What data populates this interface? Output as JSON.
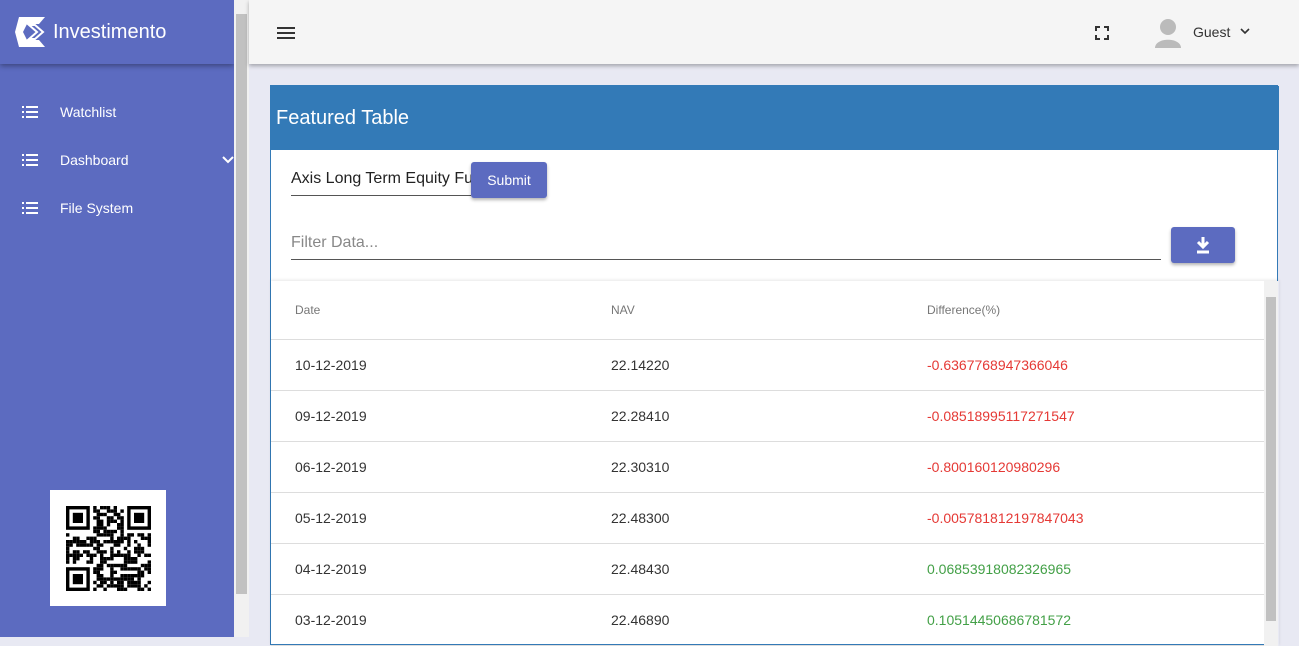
{
  "sidebar": {
    "brand": "Investimento",
    "nav": [
      {
        "label": "Watchlist"
      },
      {
        "label": "Dashboard"
      },
      {
        "label": "File System"
      }
    ]
  },
  "topbar": {
    "user": "Guest"
  },
  "card": {
    "title": "Featured Table",
    "fund_input": "Axis Long Term Equity Fund",
    "submit": "Submit",
    "filter_placeholder": "Filter Data...",
    "table": {
      "columns": [
        "Date",
        "NAV",
        "Difference(%)"
      ],
      "rows": [
        [
          "10-12-2019",
          "22.14220",
          "-0.6367768947366046"
        ],
        [
          "09-12-2019",
          "22.28410",
          "-0.08518995117271547"
        ],
        [
          "06-12-2019",
          "22.30310",
          "-0.800160120980296"
        ],
        [
          "05-12-2019",
          "22.48300",
          "-0.005781812197847043"
        ],
        [
          "04-12-2019",
          "22.48430",
          "0.06853918082326965"
        ],
        [
          "03-12-2019",
          "22.46890",
          "0.10514450686781572"
        ]
      ]
    }
  }
}
